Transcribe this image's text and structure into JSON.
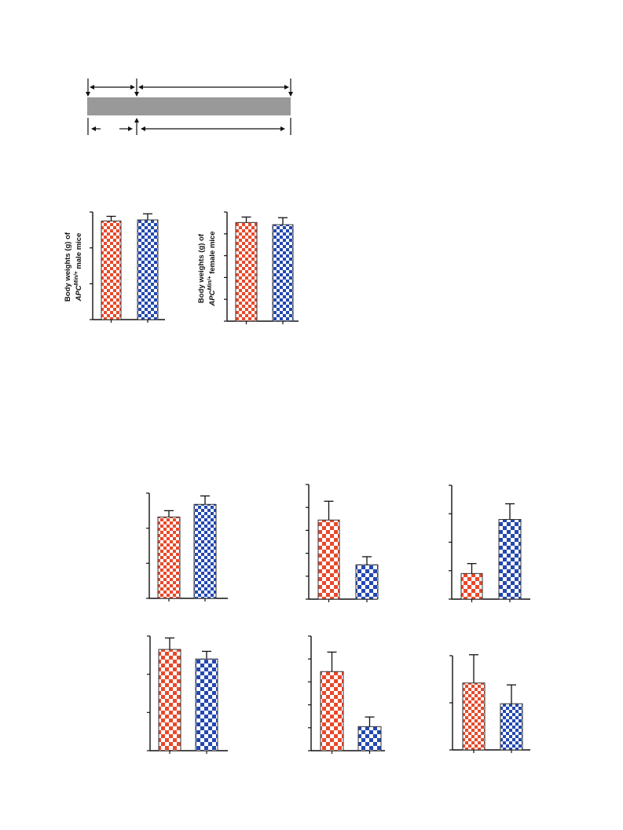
{
  "timeline": {
    "bar_color": "#999999",
    "arrow_color": "#111111"
  },
  "panel_b": {
    "male_ylabel_line1": "Body weights (g) of",
    "male_ylabel_line2_pre": "APC",
    "male_ylabel_line2_sup": "Min/+",
    "male_ylabel_line2_post": " male mice",
    "female_ylabel_line1": "Body weights (g) of",
    "female_ylabel_line2_pre": "APC",
    "female_ylabel_line2_sup": "Min/+",
    "female_ylabel_line2_post": " female mice"
  },
  "colors": {
    "red": "#e8492a",
    "blue": "#2348b0"
  },
  "chart_data": [
    {
      "type": "bar",
      "id": "male-body-weight",
      "ylim": [
        0,
        3
      ],
      "y_ticks": 4,
      "values": [
        2.75,
        2.78
      ],
      "errors": [
        0.13,
        0.17
      ],
      "colors": [
        "red",
        "blue"
      ],
      "density": "fine"
    },
    {
      "type": "bar",
      "id": "female-body-weight",
      "ylim": [
        0,
        5
      ],
      "y_ticks": 6,
      "values": [
        4.52,
        4.42
      ],
      "errors": [
        0.25,
        0.32
      ],
      "colors": [
        "red",
        "blue"
      ],
      "density": "fine"
    },
    {
      "type": "bar",
      "id": "row1-col1",
      "ylim": [
        0,
        3
      ],
      "y_ticks": 4,
      "values": [
        2.32,
        2.68
      ],
      "errors": [
        0.18,
        0.24
      ],
      "colors": [
        "red",
        "blue"
      ],
      "density": "fine"
    },
    {
      "type": "bar",
      "id": "row1-col2",
      "ylim": [
        0,
        5
      ],
      "y_ticks": 6,
      "values": [
        3.45,
        1.5
      ],
      "errors": [
        0.82,
        0.35
      ],
      "colors": [
        "red",
        "blue"
      ],
      "density": "coarse"
    },
    {
      "type": "bar",
      "id": "row1-col3",
      "ylim": [
        0,
        4
      ],
      "y_ticks": 5,
      "values": [
        0.9,
        2.8
      ],
      "errors": [
        0.35,
        0.55
      ],
      "colors": [
        "red",
        "blue"
      ],
      "density": "coarse"
    },
    {
      "type": "bar",
      "id": "row2-col1",
      "ylim": [
        0,
        3
      ],
      "y_ticks": 4,
      "values": [
        2.65,
        2.4
      ],
      "errors": [
        0.3,
        0.2
      ],
      "colors": [
        "red",
        "blue"
      ],
      "density": "coarse"
    },
    {
      "type": "bar",
      "id": "row2-col2",
      "ylim": [
        0,
        5
      ],
      "y_ticks": 6,
      "values": [
        3.45,
        1.05
      ],
      "errors": [
        0.85,
        0.42
      ],
      "colors": [
        "red",
        "blue"
      ],
      "density": "coarse"
    },
    {
      "type": "bar",
      "id": "row2-col3",
      "ylim": [
        0,
        2
      ],
      "y_ticks": 3,
      "values": [
        1.42,
        0.98
      ],
      "errors": [
        0.6,
        0.4
      ],
      "colors": [
        "red",
        "blue"
      ],
      "density": "fine"
    }
  ]
}
